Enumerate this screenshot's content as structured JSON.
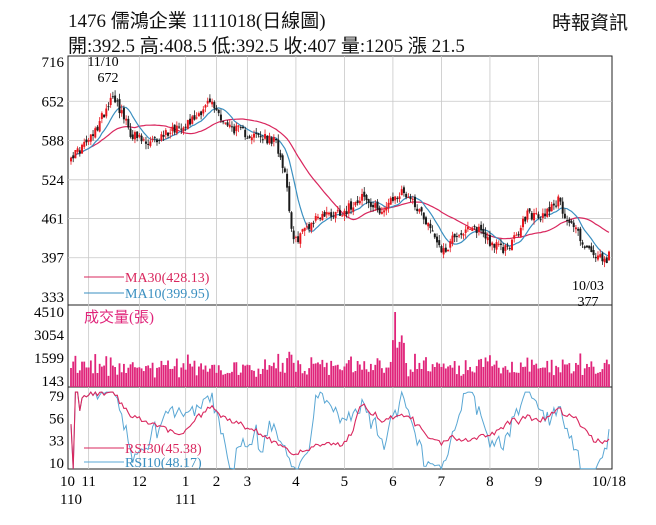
{
  "header": {
    "stock_code": "1476",
    "stock_name": "儒鴻企業",
    "date_label": "1111018(日線圖)",
    "source": "時報資訊",
    "ohlc": {
      "open_label": "開:",
      "open": "392.5",
      "high_label": "高:",
      "high": "408.5",
      "low_label": "低:",
      "low": "392.5",
      "close_label": "收:",
      "close": "407",
      "volume_label": "量:",
      "volume": "1205",
      "change_label": "漲",
      "change": "21.5"
    }
  },
  "colors": {
    "up": "#e8161e",
    "down": "#1a1a1a",
    "ma30": "#d9275e",
    "ma10": "#3a8fc0",
    "volume": "#e0247a",
    "rsi30": "#d9275e",
    "rsi10": "#5aa7d4",
    "grid": "#c8c8c8"
  },
  "chart_data": [
    {
      "type": "candlestick",
      "panel": "price",
      "y_ticks": [
        "716",
        "652",
        "588",
        "524",
        "461",
        "397",
        "333"
      ],
      "ylim": [
        333,
        716
      ],
      "x_range": [
        "2022-10-11",
        "2022-10-18"
      ],
      "annotations": [
        {
          "date_label": "11/10",
          "value_label": "672",
          "position": "top"
        },
        {
          "date_label": "10/03",
          "value_label": "377",
          "position": "bottom"
        }
      ],
      "legend": [
        {
          "name": "MA30",
          "value": "(428.13)"
        },
        {
          "name": "MA10",
          "value": "(399.95)"
        }
      ],
      "last_candle": {
        "open": 392.5,
        "high": 408.5,
        "low": 392.5,
        "close": 407
      },
      "close_anchors": [
        [
          0,
          560
        ],
        [
          7,
          595
        ],
        [
          14,
          665
        ],
        [
          20,
          600
        ],
        [
          26,
          580
        ],
        [
          33,
          605
        ],
        [
          40,
          622
        ],
        [
          46,
          652
        ],
        [
          52,
          612
        ],
        [
          58,
          600
        ],
        [
          64,
          592
        ],
        [
          68,
          585
        ],
        [
          71,
          540
        ],
        [
          74,
          420
        ],
        [
          77,
          440
        ],
        [
          82,
          465
        ],
        [
          87,
          470
        ],
        [
          92,
          475
        ],
        [
          97,
          500
        ],
        [
          100,
          480
        ],
        [
          104,
          475
        ],
        [
          108,
          495
        ],
        [
          111,
          505
        ],
        [
          114,
          490
        ],
        [
          117,
          470
        ],
        [
          120,
          440
        ],
        [
          124,
          405
        ],
        [
          128,
          435
        ],
        [
          132,
          440
        ],
        [
          136,
          445
        ],
        [
          140,
          420
        ],
        [
          144,
          410
        ],
        [
          148,
          430
        ],
        [
          152,
          470
        ],
        [
          156,
          460
        ],
        [
          159,
          480
        ],
        [
          162,
          490
        ],
        [
          165,
          460
        ],
        [
          168,
          445
        ],
        [
          171,
          415
        ],
        [
          174,
          400
        ],
        [
          176,
          395
        ],
        [
          178,
          385
        ],
        [
          179,
          407
        ]
      ]
    },
    {
      "type": "bar",
      "panel": "volume",
      "title": "成交量(張)",
      "y_ticks": [
        "4510",
        "3054",
        "1599",
        "143"
      ],
      "ylim": [
        143,
        4510
      ]
    },
    {
      "type": "line",
      "panel": "rsi",
      "y_ticks": [
        "79",
        "56",
        "33",
        "10"
      ],
      "ylim": [
        10,
        79
      ],
      "legend": [
        {
          "name": "RSI30",
          "value": "(45.38)"
        },
        {
          "name": "RSI10",
          "value": "(48.17)"
        }
      ]
    }
  ],
  "x_axis": [
    {
      "label": "10",
      "sub": "110",
      "index": 0
    },
    {
      "label": "11",
      "sub": "",
      "index": 8
    },
    {
      "label": "12",
      "sub": "",
      "index": 31
    },
    {
      "label": "1",
      "sub": "111",
      "index": 52
    },
    {
      "label": "2",
      "sub": "",
      "index": 66
    },
    {
      "label": "3",
      "sub": "",
      "index": 80
    },
    {
      "label": "4",
      "sub": "",
      "index": 102
    },
    {
      "label": "5",
      "sub": "",
      "index": 124
    },
    {
      "label": "6",
      "sub": "",
      "index": 146
    },
    {
      "label": "7",
      "sub": "",
      "index": 168
    },
    {
      "label": "8",
      "sub": "",
      "index": 190
    },
    {
      "label": "9",
      "sub": "",
      "index": 212
    },
    {
      "label": "10/18",
      "sub": "",
      "index": 244
    }
  ]
}
